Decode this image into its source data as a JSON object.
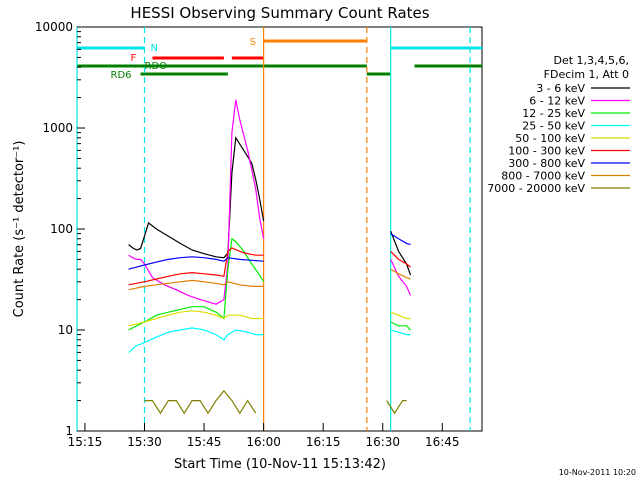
{
  "chart_data": {
    "type": "line",
    "title": "HESSI Observing Summary Count Rates",
    "xlabel": "Start Time (10-Nov-11 15:13:42)",
    "ylabel": "Count Rate (s⁻¹ detector⁻¹)",
    "ylim": [
      1,
      10000
    ],
    "xlim": [
      "15:13",
      "16:55"
    ],
    "y_scale": "log",
    "grid": false,
    "legend_placement": "right",
    "x_ticks": [
      "15:15",
      "15:30",
      "15:45",
      "16:00",
      "16:15",
      "16:30",
      "16:45"
    ],
    "y_ticks": [
      "1",
      "10",
      "100",
      "1000",
      "10000"
    ],
    "legend_header": [
      "Det 1,3,4,5,6,",
      "FDecim 1, Att 0"
    ],
    "footer_date": "10-Nov-2011 10:20",
    "flags": {
      "N": "N",
      "S": "S",
      "F": "F",
      "RDO": "RDO",
      "RD6": "RD6",
      "N_color": "#00e5e5",
      "S_color": "#ff8000",
      "F_color": "#ff0000",
      "RD_color": "#007f00"
    },
    "series": [
      {
        "name": "3 - 6 keV",
        "color": "#000000",
        "segments": [
          [
            [
              "15:26",
              70
            ],
            [
              "15:27",
              65
            ],
            [
              "15:28",
              62
            ],
            [
              "15:29",
              64
            ],
            [
              "15:30",
              85
            ],
            [
              "15:31",
              115
            ],
            [
              "15:33",
              100
            ],
            [
              "15:36",
              85
            ],
            [
              "15:39",
              72
            ],
            [
              "15:42",
              62
            ],
            [
              "15:45",
              57
            ],
            [
              "15:48",
              53
            ],
            [
              "15:50",
              52
            ],
            [
              "15:51",
              58
            ],
            [
              "15:52",
              360
            ],
            [
              "15:53",
              800
            ],
            [
              "15:55",
              600
            ],
            [
              "15:57",
              450
            ],
            [
              "15:58",
              310
            ],
            [
              "15:59",
              200
            ],
            [
              "16:00",
              120
            ]
          ],
          [
            [
              "16:32",
              95
            ],
            [
              "16:34",
              60
            ],
            [
              "16:36",
              45
            ],
            [
              "16:37",
              35
            ]
          ]
        ]
      },
      {
        "name": "6 - 12 keV",
        "color": "#ff00ff",
        "segments": [
          [
            [
              "15:26",
              55
            ],
            [
              "15:27",
              52
            ],
            [
              "15:28",
              50
            ],
            [
              "15:29",
              50
            ],
            [
              "15:30",
              45
            ],
            [
              "15:32",
              33
            ],
            [
              "15:35",
              28
            ],
            [
              "15:38",
              25
            ],
            [
              "15:41",
              22
            ],
            [
              "15:44",
              20
            ],
            [
              "15:46",
              19
            ],
            [
              "15:48",
              18
            ],
            [
              "15:50",
              20
            ],
            [
              "15:51",
              45
            ],
            [
              "15:52",
              900
            ],
            [
              "15:53",
              1900
            ],
            [
              "15:54",
              1200
            ],
            [
              "15:56",
              600
            ],
            [
              "15:58",
              250
            ],
            [
              "15:59",
              130
            ],
            [
              "16:00",
              80
            ]
          ],
          [
            [
              "16:32",
              50
            ],
            [
              "16:34",
              34
            ],
            [
              "16:36",
              27
            ],
            [
              "16:37",
              22
            ]
          ]
        ]
      },
      {
        "name": "12 - 25 keV",
        "color": "#00ee00",
        "segments": [
          [
            [
              "15:26",
              10
            ],
            [
              "15:28",
              11
            ],
            [
              "15:30",
              12
            ],
            [
              "15:33",
              14
            ],
            [
              "15:36",
              15
            ],
            [
              "15:39",
              16
            ],
            [
              "15:42",
              17
            ],
            [
              "15:45",
              17
            ],
            [
              "15:48",
              15
            ],
            [
              "15:50",
              13
            ],
            [
              "15:51",
              40
            ],
            [
              "15:52",
              80
            ],
            [
              "15:53",
              75
            ],
            [
              "15:55",
              60
            ],
            [
              "15:57",
              45
            ],
            [
              "15:59",
              35
            ],
            [
              "16:00",
              30
            ]
          ],
          [
            [
              "16:32",
              12
            ],
            [
              "16:34",
              11
            ],
            [
              "16:36",
              11
            ],
            [
              "16:37",
              10
            ]
          ]
        ]
      },
      {
        "name": "25 - 50 keV",
        "color": "#00ffff",
        "segments": [
          [
            [
              "15:26",
              6
            ],
            [
              "15:28",
              7
            ],
            [
              "15:30",
              7.5
            ],
            [
              "15:33",
              8.5
            ],
            [
              "15:36",
              9.5
            ],
            [
              "15:39",
              10
            ],
            [
              "15:42",
              10.5
            ],
            [
              "15:45",
              10
            ],
            [
              "15:48",
              9
            ],
            [
              "15:50",
              8
            ],
            [
              "15:51",
              9
            ],
            [
              "15:53",
              10
            ],
            [
              "15:56",
              9.5
            ],
            [
              "15:58",
              9
            ],
            [
              "16:00",
              9
            ]
          ],
          [
            [
              "16:32",
              10
            ],
            [
              "16:34",
              9.5
            ],
            [
              "16:36",
              9
            ],
            [
              "16:37",
              9
            ]
          ]
        ]
      },
      {
        "name": "50 - 100 keV",
        "color": "#dddd00",
        "segments": [
          [
            [
              "15:26",
              11
            ],
            [
              "15:28",
              11.5
            ],
            [
              "15:30",
              12
            ],
            [
              "15:33",
              13
            ],
            [
              "15:36",
              14
            ],
            [
              "15:39",
              15
            ],
            [
              "15:42",
              15.5
            ],
            [
              "15:45",
              15
            ],
            [
              "15:48",
              14
            ],
            [
              "15:50",
              13
            ],
            [
              "15:51",
              14
            ],
            [
              "15:54",
              14
            ],
            [
              "15:57",
              13
            ],
            [
              "16:00",
              13
            ]
          ],
          [
            [
              "16:32",
              15
            ],
            [
              "16:34",
              14
            ],
            [
              "16:36",
              13
            ],
            [
              "16:37",
              13
            ]
          ]
        ]
      },
      {
        "name": "100 - 300 keV",
        "color": "#ff0000",
        "segments": [
          [
            [
              "15:26",
              28
            ],
            [
              "15:28",
              29
            ],
            [
              "15:30",
              30
            ],
            [
              "15:33",
              32
            ],
            [
              "15:36",
              34
            ],
            [
              "15:39",
              36
            ],
            [
              "15:42",
              37
            ],
            [
              "15:45",
              36
            ],
            [
              "15:48",
              35
            ],
            [
              "15:50",
              34
            ],
            [
              "15:51",
              60
            ],
            [
              "15:52",
              65
            ],
            [
              "15:55",
              58
            ],
            [
              "15:58",
              55
            ],
            [
              "16:00",
              55
            ]
          ],
          [
            [
              "16:32",
              60
            ],
            [
              "16:34",
              50
            ],
            [
              "16:36",
              45
            ],
            [
              "16:37",
              42
            ]
          ]
        ]
      },
      {
        "name": "300 - 800 keV",
        "color": "#0000ff",
        "segments": [
          [
            [
              "15:26",
              40
            ],
            [
              "15:28",
              42
            ],
            [
              "15:30",
              44
            ],
            [
              "15:33",
              47
            ],
            [
              "15:36",
              50
            ],
            [
              "15:39",
              52
            ],
            [
              "15:42",
              53
            ],
            [
              "15:45",
              52
            ],
            [
              "15:48",
              50
            ],
            [
              "15:50",
              48
            ],
            [
              "15:51",
              52
            ],
            [
              "15:54",
              50
            ],
            [
              "15:57",
              49
            ],
            [
              "16:00",
              48
            ]
          ],
          [
            [
              "16:32",
              90
            ],
            [
              "16:34",
              80
            ],
            [
              "16:36",
              72
            ],
            [
              "16:37",
              70
            ]
          ]
        ]
      },
      {
        "name": "800 - 7000 keV",
        "color": "#e08000",
        "segments": [
          [
            [
              "15:26",
              25
            ],
            [
              "15:28",
              26
            ],
            [
              "15:30",
              27
            ],
            [
              "15:33",
              28
            ],
            [
              "15:36",
              29
            ],
            [
              "15:39",
              30
            ],
            [
              "15:42",
              31
            ],
            [
              "15:45",
              30
            ],
            [
              "15:48",
              29
            ],
            [
              "15:50",
              28
            ],
            [
              "15:51",
              30
            ],
            [
              "15:54",
              28
            ],
            [
              "15:57",
              27
            ],
            [
              "16:00",
              27
            ]
          ],
          [
            [
              "16:32",
              40
            ],
            [
              "16:34",
              36
            ],
            [
              "16:36",
              33
            ],
            [
              "16:37",
              32
            ]
          ]
        ]
      },
      {
        "name": "7000 - 20000 keV",
        "color": "#7f7f00",
        "segments": [
          [
            [
              "15:30",
              2
            ],
            [
              "15:32",
              2
            ],
            [
              "15:34",
              1.5
            ],
            [
              "15:36",
              2
            ],
            [
              "15:38",
              2
            ],
            [
              "15:40",
              1.5
            ],
            [
              "15:42",
              2
            ],
            [
              "15:44",
              2
            ],
            [
              "15:46",
              1.5
            ],
            [
              "15:48",
              2
            ],
            [
              "15:50",
              2.5
            ],
            [
              "15:52",
              2
            ],
            [
              "15:54",
              1.5
            ],
            [
              "15:56",
              2
            ],
            [
              "15:58",
              1.5
            ]
          ],
          [
            [
              "16:31",
              2
            ],
            [
              "16:33",
              1.5
            ],
            [
              "16:35",
              2
            ],
            [
              "16:36",
              2
            ]
          ]
        ]
      }
    ],
    "status_bars": {
      "night": [
        [
          "15:13",
          "15:30"
        ],
        [
          "16:32",
          "16:55"
        ]
      ],
      "saa": [
        [
          "16:00",
          "16:26"
        ]
      ],
      "flare": [
        [
          "15:32",
          "15:50"
        ],
        [
          "15:52",
          "16:00"
        ]
      ],
      "rdo": [
        [
          "15:13",
          "16:26"
        ],
        [
          "16:38",
          "16:55"
        ]
      ],
      "rd6": [
        [
          "15:29",
          "15:51"
        ],
        [
          "16:26",
          "16:32"
        ]
      ]
    },
    "vlines": [
      {
        "time": "15:13",
        "color": "#00e5e5",
        "dash": false
      },
      {
        "time": "15:30",
        "color": "#00e5e5",
        "dash": true
      },
      {
        "time": "16:00",
        "color": "#ff8000",
        "dash": false
      },
      {
        "time": "16:26",
        "color": "#ff8000",
        "dash": true
      },
      {
        "time": "16:32",
        "color": "#00e5e5",
        "dash": false
      },
      {
        "time": "16:52",
        "color": "#00e5e5",
        "dash": true
      }
    ]
  }
}
